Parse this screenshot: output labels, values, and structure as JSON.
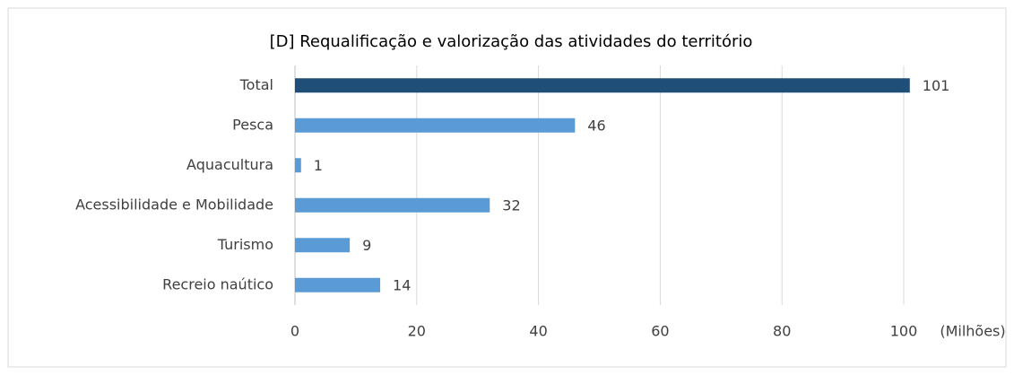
{
  "chart_data": {
    "type": "bar",
    "orientation": "horizontal",
    "title": "[D] Requalificação e valorização das atividades do território",
    "categories": [
      "Total",
      "Pesca",
      "Aquacultura",
      "Acessibilidade e Mobilidade",
      "Turismo",
      "Recreio naútico"
    ],
    "values": [
      101,
      46,
      1,
      32,
      9,
      14
    ],
    "colors": [
      "#1f4e79",
      "#5b9bd5",
      "#5b9bd5",
      "#5b9bd5",
      "#5b9bd5",
      "#5b9bd5"
    ],
    "xlabel": "(Milhões)",
    "xlim": [
      0,
      100
    ],
    "xticks": [
      0,
      20,
      40,
      60,
      80,
      100
    ],
    "grid": true
  }
}
